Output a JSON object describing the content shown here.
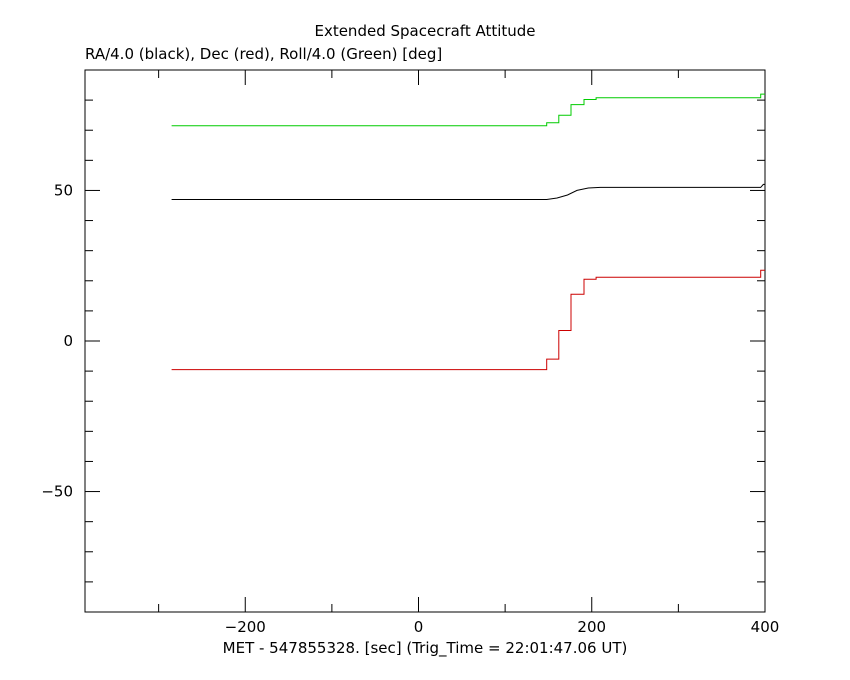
{
  "chart_data": {
    "type": "line",
    "title": "Extended Spacecraft Attitude",
    "subtitle": "RA/4.0 (black), Dec (red), Roll/4.0 (Green) [deg]",
    "xlabel": "MET - 547855328. [sec] (Trig_Time = 22:01:47.06 UT)",
    "ylabel": "",
    "xlim": [
      -385,
      400
    ],
    "ylim": [
      -90,
      90
    ],
    "x_ticks": [
      -200,
      0,
      200,
      400
    ],
    "y_ticks": [
      -50,
      0,
      50
    ],
    "grid": false,
    "series": [
      {
        "color": "#000000",
        "points": [
          [
            -285,
            47
          ],
          [
            148,
            47
          ],
          [
            160,
            47.5
          ],
          [
            172,
            48.5
          ],
          [
            183,
            50
          ],
          [
            196,
            50.8
          ],
          [
            210,
            51
          ],
          [
            395,
            51
          ],
          [
            398,
            52
          ],
          [
            400,
            52
          ]
        ]
      },
      {
        "color": "#cc0000",
        "points": [
          [
            -285,
            -9.5
          ],
          [
            148,
            -9.5
          ],
          [
            148,
            -6
          ],
          [
            162,
            -6
          ],
          [
            162,
            3.5
          ],
          [
            176,
            3.5
          ],
          [
            176,
            15.5
          ],
          [
            191,
            15.5
          ],
          [
            191,
            20.5
          ],
          [
            205,
            20.5
          ],
          [
            205,
            21.2
          ],
          [
            395,
            21.2
          ],
          [
            395,
            23.5
          ],
          [
            400,
            23.5
          ]
        ]
      },
      {
        "color": "#00cc00",
        "points": [
          [
            -285,
            71.5
          ],
          [
            148,
            71.5
          ],
          [
            148,
            72.5
          ],
          [
            162,
            72.5
          ],
          [
            162,
            75
          ],
          [
            176,
            75
          ],
          [
            176,
            78.5
          ],
          [
            191,
            78.5
          ],
          [
            191,
            80.2
          ],
          [
            205,
            80.2
          ],
          [
            205,
            80.8
          ],
          [
            395,
            80.8
          ],
          [
            395,
            82
          ],
          [
            400,
            82
          ]
        ]
      }
    ]
  }
}
